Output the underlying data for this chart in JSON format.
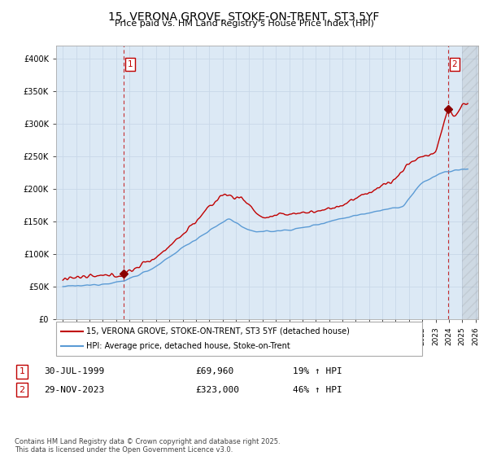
{
  "title": "15, VERONA GROVE, STOKE-ON-TRENT, ST3 5YF",
  "subtitle": "Price paid vs. HM Land Registry's House Price Index (HPI)",
  "legend_line1": "15, VERONA GROVE, STOKE-ON-TRENT, ST3 5YF (detached house)",
  "legend_line2": "HPI: Average price, detached house, Stoke-on-Trent",
  "footer": "Contains HM Land Registry data © Crown copyright and database right 2025.\nThis data is licensed under the Open Government Licence v3.0.",
  "transaction1_label": "1",
  "transaction1_date": "30-JUL-1999",
  "transaction1_price": "£69,960",
  "transaction1_hpi": "19% ↑ HPI",
  "transaction2_label": "2",
  "transaction2_date": "29-NOV-2023",
  "transaction2_price": "£323,000",
  "transaction2_hpi": "46% ↑ HPI",
  "hpi_line_color": "#5b9bd5",
  "price_line_color": "#c00000",
  "marker_color": "#8b0000",
  "dashed_vline_color": "#c00000",
  "grid_color": "#c8d8e8",
  "plot_bg_color": "#dce9f5",
  "background_color": "#ffffff",
  "ylim": [
    0,
    420000
  ],
  "xlim_start": 1994.5,
  "xlim_end": 2026.2,
  "transaction1_x": 1999.58,
  "transaction1_y": 69960,
  "transaction2_x": 2023.92,
  "transaction2_y": 323000
}
